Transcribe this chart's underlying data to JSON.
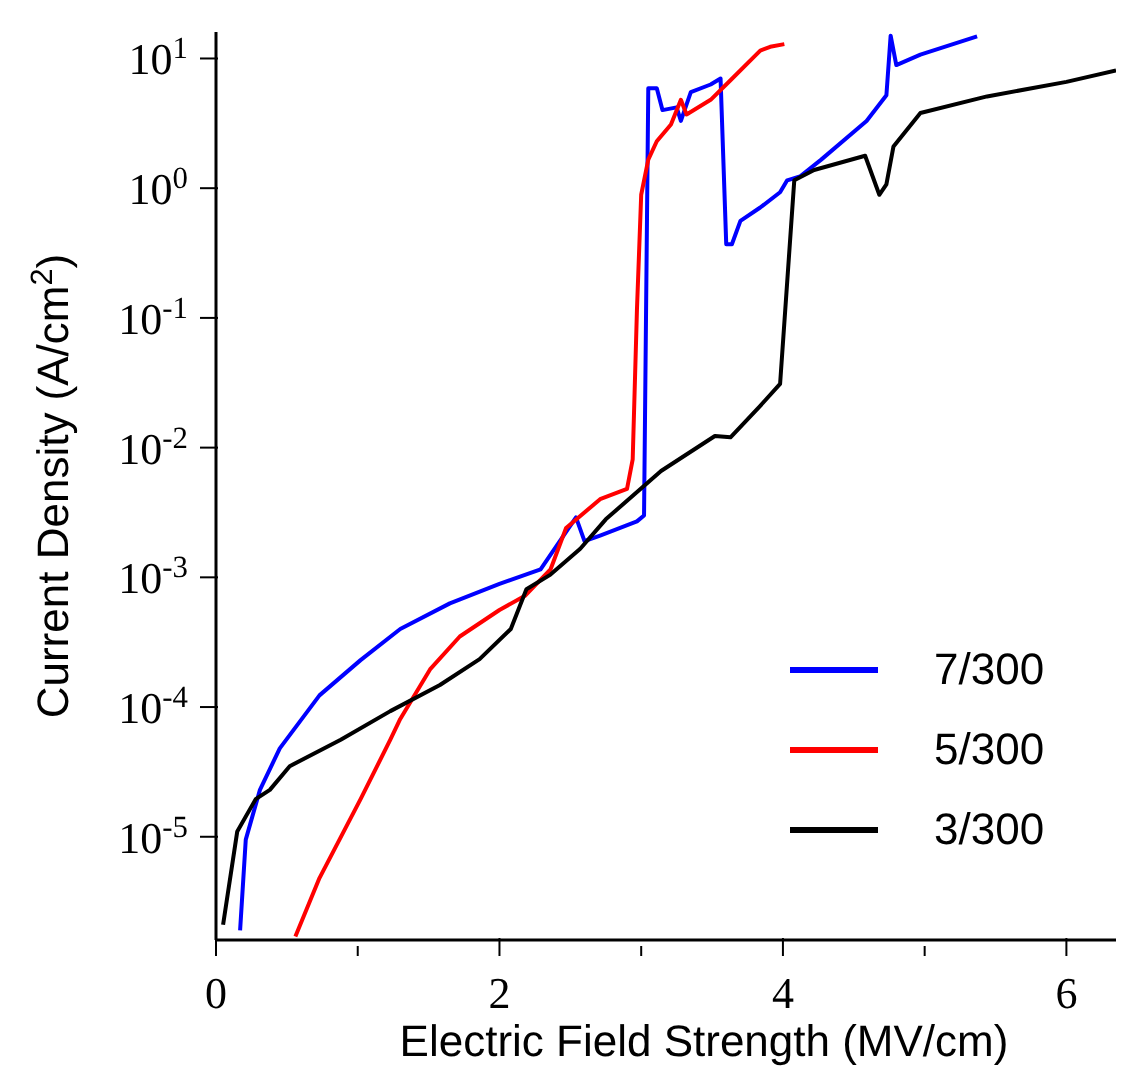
{
  "chart_data": {
    "type": "line",
    "xlabel": "Electric Field Strength (MV/cm)",
    "ylabel": "Current Density (A/cm$^{2}$)",
    "log": "y",
    "xlim": [
      0,
      6.35
    ],
    "ylim": [
      1.6e-06,
      16
    ],
    "xticks": [
      0,
      {
        "value": 1,
        "label": null
      },
      2,
      {
        "value": 3,
        "label": null
      },
      4,
      {
        "value": 5,
        "label": null
      },
      6
    ],
    "yticks": [
      {
        "value": 1e-05,
        "label": "10$^{-5}$"
      },
      {
        "value": 0.0001,
        "label": "10$^{-4}$"
      },
      {
        "value": 0.001,
        "label": "10$^{-3}$"
      },
      {
        "value": 0.01,
        "label": "10$^{-2}$"
      },
      {
        "value": 0.1,
        "label": "10$^{-1}$"
      },
      {
        "value": 1,
        "label": "10$^{0}$"
      },
      {
        "value": 10,
        "label": "10$^{1}$"
      }
    ],
    "grid": false,
    "legend": "bottom right",
    "line_style": "solid",
    "marker": "none",
    "series": [
      {
        "name": "7/300",
        "color": "#0000ff",
        "x": [
          0.17,
          0.21,
          0.31,
          0.45,
          0.73,
          1.02,
          1.3,
          1.65,
          2.0,
          2.29,
          2.54,
          2.6,
          2.71,
          2.97,
          3.02,
          3.05,
          3.11,
          3.15,
          3.25,
          3.28,
          3.35,
          3.49,
          3.56,
          3.6,
          3.64,
          3.7,
          3.84,
          3.98,
          4.03,
          4.12,
          4.27,
          4.59,
          4.73,
          4.76,
          4.8,
          4.97,
          5.37
        ],
        "values": [
          1.9e-06,
          9.5e-06,
          2.3e-05,
          4.8e-05,
          0.000123,
          0.00023,
          0.0004,
          0.00063,
          0.00089,
          0.00115,
          0.0029,
          0.0019,
          0.0021,
          0.0027,
          0.003,
          5.9,
          5.9,
          4,
          4.2,
          3.3,
          5.5,
          6.3,
          7,
          0.37,
          0.37,
          0.56,
          0.71,
          0.93,
          1.15,
          1.23,
          1.66,
          3.3,
          5.2,
          15,
          8.9,
          10.7,
          14.8
        ]
      },
      {
        "name": "5/300",
        "color": "#ff0000",
        "x": [
          0.56,
          0.73,
          1.02,
          1.23,
          1.3,
          1.51,
          1.72,
          2.0,
          2.18,
          2.36,
          2.47,
          2.71,
          2.9,
          2.94,
          2.97,
          3.0,
          3.05,
          3.11,
          3.21,
          3.28,
          3.32,
          3.49,
          3.63,
          3.84,
          3.91,
          4.01
        ],
        "values": [
          1.7e-06,
          4.8e-06,
          1.95e-05,
          5.6e-05,
          8.1e-05,
          0.000195,
          0.00035,
          0.00056,
          0.00072,
          0.00115,
          0.0024,
          0.004,
          0.0048,
          0.0081,
          0.115,
          0.89,
          1.66,
          2.3,
          3.1,
          4.8,
          3.7,
          4.8,
          6.8,
          11.5,
          12.3,
          12.9
        ]
      },
      {
        "name": "3/300",
        "color": "#000000",
        "x": [
          0.05,
          0.15,
          0.28,
          0.38,
          0.52,
          0.88,
          1.23,
          1.58,
          1.86,
          2.08,
          2.19,
          2.36,
          2.57,
          2.75,
          3.14,
          3.52,
          3.63,
          3.84,
          3.98,
          4.08,
          4.22,
          4.58,
          4.68,
          4.73,
          4.78,
          4.97,
          5.44,
          6.0,
          6.35
        ],
        "values": [
          2.1e-06,
          1.1e-05,
          1.95e-05,
          2.3e-05,
          3.5e-05,
          5.6e-05,
          9.3e-05,
          0.000148,
          0.000234,
          0.0004,
          0.00081,
          0.00105,
          0.00166,
          0.0028,
          0.0066,
          0.0123,
          0.012,
          0.021,
          0.031,
          1.15,
          1.38,
          1.78,
          0.89,
          1.07,
          2.1,
          3.8,
          5.1,
          6.6,
          8.1
        ]
      }
    ]
  }
}
